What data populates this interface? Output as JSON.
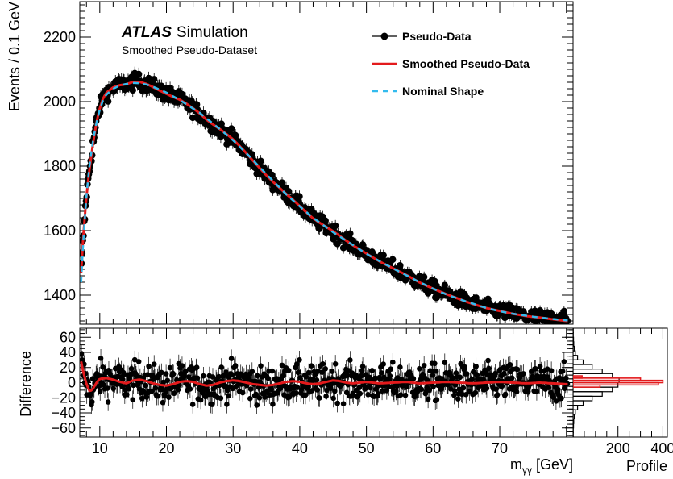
{
  "chart_data": [
    {
      "type": "scatter",
      "panel": "main",
      "ylabel": "Events / 0.1 GeV",
      "xlim": [
        7,
        81
      ],
      "ylim": [
        1310,
        2310
      ],
      "x_ticks": [
        10,
        20,
        30,
        40,
        50,
        60,
        70
      ],
      "y_ticks": [
        1400,
        1600,
        1800,
        2000,
        2200
      ],
      "experiment_label": "ATLAS",
      "experiment_label_suffix": "Simulation",
      "annotation": "Smoothed Pseudo-Dataset",
      "legend_position": "top-right",
      "legend": [
        {
          "label": "Pseudo-Data",
          "style": "marker",
          "color": "#000000"
        },
        {
          "label": "Smoothed Pseudo-Data",
          "style": "line",
          "color": "#e31a1c"
        },
        {
          "label": "Nominal Shape",
          "style": "dashed",
          "color": "#33bbee"
        }
      ],
      "nominal_shape": {
        "x": [
          7.2,
          7.5,
          8,
          8.5,
          9,
          9.5,
          10,
          10.5,
          11,
          12,
          13,
          14,
          15,
          16,
          17,
          18,
          20,
          22,
          25,
          28,
          30,
          32,
          35,
          38,
          40,
          42,
          45,
          48,
          50,
          52,
          55,
          58,
          60,
          62,
          65,
          68,
          70,
          72,
          75,
          78,
          80
        ],
        "y": [
          1440,
          1560,
          1710,
          1810,
          1880,
          1935,
          1975,
          2005,
          2022,
          2040,
          2050,
          2055,
          2058,
          2057,
          2053,
          2046,
          2028,
          2005,
          1965,
          1915,
          1880,
          1840,
          1775,
          1712,
          1675,
          1640,
          1595,
          1555,
          1528,
          1505,
          1472,
          1440,
          1420,
          1402,
          1380,
          1360,
          1350,
          1342,
          1333,
          1326,
          1322
        ]
      },
      "pseudo_data": {
        "description_of_values": "scatter of pseudo-data points with error bars fluctuating about the nominal shape",
        "x": [
          7.2,
          7.4,
          7.6,
          7.8,
          8.0,
          8.2,
          8.4,
          8.6,
          8.8,
          9.0,
          9.3,
          9.6,
          10.0,
          10.5,
          11.0,
          11.5,
          12.0,
          12.5,
          13.0,
          13.5,
          14.0,
          14.5,
          15.0,
          15.5,
          16.0,
          16.5,
          17.0,
          17.5,
          18.0,
          19.0,
          20.0,
          21.0,
          22.0,
          23.0,
          24.0,
          25.0,
          26.0,
          27.0,
          28.0,
          29.0,
          30.0,
          31.0,
          32.0,
          33.0,
          34.0,
          35.0,
          36.0,
          37.0,
          38.0,
          39.0,
          40.0,
          41.0,
          42.0,
          43.0,
          44.0,
          45.0,
          46.0,
          47.0,
          48.0,
          49.0,
          50.0,
          51.0,
          52.0,
          53.0,
          54.0,
          55.0,
          56.0,
          57.0,
          58.0,
          59.0,
          60.0,
          61.0,
          62.0,
          63.0,
          64.0,
          65.0,
          66.0,
          67.0,
          68.0,
          69.0,
          70.0,
          71.0,
          72.0,
          73.0,
          74.0,
          75.0,
          76.0,
          77.0,
          78.0,
          79.0,
          80.0
        ],
        "y": [
          1430,
          1500,
          1585,
          1650,
          1720,
          1765,
          1800,
          1830,
          1860,
          1880,
          1915,
          1945,
          1978,
          2000,
          2030,
          2035,
          2055,
          2045,
          2070,
          2060,
          2072,
          2050,
          2090,
          2065,
          2070,
          2040,
          2065,
          2045,
          2040,
          2030,
          2020,
          2015,
          2000,
          1995,
          1980,
          1960,
          1950,
          1930,
          1915,
          1900,
          1875,
          1870,
          1840,
          1830,
          1810,
          1770,
          1760,
          1745,
          1715,
          1700,
          1670,
          1665,
          1640,
          1625,
          1620,
          1590,
          1590,
          1565,
          1550,
          1545,
          1525,
          1515,
          1500,
          1500,
          1485,
          1470,
          1470,
          1450,
          1440,
          1432,
          1420,
          1412,
          1400,
          1398,
          1390,
          1378,
          1375,
          1365,
          1360,
          1356,
          1350,
          1345,
          1340,
          1338,
          1335,
          1333,
          1330,
          1328,
          1326,
          1324,
          1322
        ]
      }
    },
    {
      "type": "scatter",
      "panel": "difference",
      "ylabel": "Difference",
      "xlabel": "m",
      "xlabel_subscript": "γγ",
      "xlabel_suffix": " [GeV]",
      "xlim": [
        7,
        81
      ],
      "ylim": [
        -72,
        72
      ],
      "x_ticks": [
        10,
        20,
        30,
        40,
        50,
        60,
        70
      ],
      "y_ticks": [
        -60,
        -40,
        -20,
        0,
        20,
        40,
        60
      ],
      "smoothed_difference": {
        "x": [
          7.2,
          7.5,
          8.0,
          8.5,
          9.0,
          9.5,
          10.0,
          11.0,
          12.0,
          13.0,
          14.0,
          15.0,
          16.0,
          17.0,
          18.0,
          19.0,
          20.0,
          21.0,
          22.0,
          23.0,
          24.0,
          25.0,
          26.0,
          27.0,
          28.0,
          29.0,
          30.0,
          31.0,
          32.0,
          33.0,
          34.0,
          35.0,
          36.0,
          37.0,
          38.0,
          39.0,
          40.0,
          41.0,
          42.0,
          43.0,
          44.0,
          45.0,
          46.0,
          47.0,
          48.0,
          49.0,
          50.0,
          52.0,
          54.0,
          56.0,
          58.0,
          60.0,
          62.0,
          64.0,
          66.0,
          68.0,
          70.0,
          72.0,
          74.0,
          76.0,
          78.0,
          80.0
        ],
        "y": [
          28,
          15,
          -2,
          -12,
          -8,
          0,
          5,
          6,
          4,
          1,
          -1,
          3,
          4,
          2,
          -1,
          -3,
          -4,
          -2,
          1,
          2,
          1,
          -2,
          -4,
          -3,
          0,
          2,
          3,
          2,
          0,
          -2,
          -3,
          -4,
          -3,
          -1,
          1,
          2,
          1,
          -1,
          -2,
          -1,
          1,
          3,
          2,
          0,
          -1,
          0,
          1,
          -1,
          0,
          1,
          -1,
          0,
          1,
          0,
          -1,
          0,
          1,
          0,
          -1,
          0,
          -1,
          -2
        ]
      },
      "pseudo_data_difference": {
        "description_of_values": "dense scatter of differences (pseudo-data minus nominal), mostly within ±40",
        "x_range": [
          7.2,
          80
        ],
        "approx_spread": 20
      }
    },
    {
      "type": "bar",
      "panel": "profile",
      "xlabel": "Profile",
      "orientation": "horizontal",
      "xlim": [
        0,
        420
      ],
      "x_ticks": [
        200,
        400
      ],
      "bins_y_low": [
        -72,
        -66,
        -60,
        -54,
        -48,
        -42,
        -36,
        -30,
        -24,
        -18,
        -12,
        -6,
        0,
        6,
        12,
        18,
        24,
        30,
        36,
        42,
        48,
        54,
        60,
        66
      ],
      "bins_width": 6,
      "counts_data": [
        1,
        1,
        2,
        3,
        5,
        10,
        20,
        45,
        85,
        130,
        175,
        200,
        205,
        175,
        130,
        85,
        45,
        20,
        10,
        5,
        3,
        2,
        1,
        1
      ],
      "counts_smoothed": {
        "bins_y_low": [
          -6,
          -3,
          0,
          3,
          6
        ],
        "bins_width": 3,
        "values": [
          120,
          380,
          400,
          300,
          40
        ]
      }
    }
  ]
}
